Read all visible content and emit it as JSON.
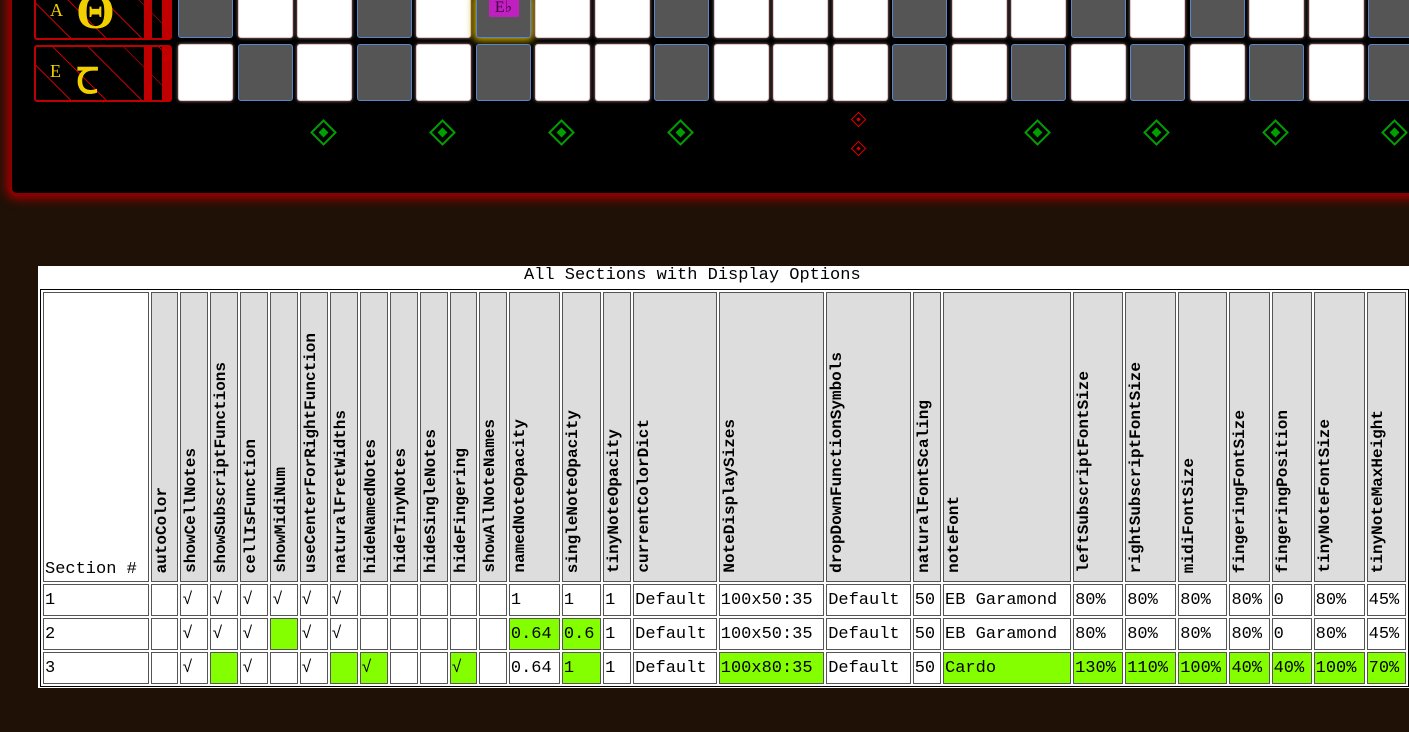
{
  "fretboard": {
    "strings": [
      {
        "note": "A",
        "function_symbol": "Θ",
        "cells": [
          "g",
          "w",
          "w",
          "g",
          "w",
          "g",
          "w",
          "w",
          "g",
          "w",
          "w",
          "w",
          "g",
          "w",
          "w",
          "g",
          "w",
          "g",
          "w",
          "w",
          "g"
        ],
        "highlight_index": 5,
        "highlight_label": "E♭"
      },
      {
        "note": "E",
        "function_symbol": "Ꞇ",
        "cells": [
          "w",
          "g",
          "w",
          "g",
          "w",
          "g",
          "w",
          "w",
          "g",
          "w",
          "w",
          "w",
          "g",
          "w",
          "g",
          "w",
          "g",
          "w",
          "g",
          "w",
          "g"
        ]
      }
    ],
    "fret_markers": [
      {
        "fret": 3,
        "type": "single",
        "color": "#00a000"
      },
      {
        "fret": 5,
        "type": "single",
        "color": "#00a000"
      },
      {
        "fret": 7,
        "type": "single",
        "color": "#00a000"
      },
      {
        "fret": 9,
        "type": "single",
        "color": "#00a000"
      },
      {
        "fret": 12,
        "type": "double",
        "color": "#e00000"
      },
      {
        "fret": 15,
        "type": "single",
        "color": "#00a000"
      },
      {
        "fret": 17,
        "type": "single",
        "color": "#00a000"
      },
      {
        "fret": 19,
        "type": "single",
        "color": "#00a000"
      },
      {
        "fret": 21,
        "type": "single",
        "color": "#00a000"
      }
    ]
  },
  "table": {
    "title": "All Sections with Display Options",
    "highlight_color": "#84ff00",
    "columns": [
      "Section #",
      "autoColor",
      "showCellNotes",
      "showSubscriptFunctions",
      "cellIsFunction",
      "showMidiNum",
      "useCenterForRightFunction",
      "naturalFretWidths",
      "hideNamedNotes",
      "hideTinyNotes",
      "hideSingleNotes",
      "hideFingering",
      "showAllNoteNames",
      "namedNoteOpacity",
      "singleNoteOpacity",
      "tinyNoteOpacity",
      "currentColorDict",
      "NoteDisplaySizes",
      "dropDownFunctionSymbols",
      "naturalFontScaling",
      "noteFont",
      "leftSubscriptFontSize",
      "rightSubscriptFontSize",
      "midiFontSize",
      "fingeringFontSize",
      "fingeringPosition",
      "tinyNoteFontSize",
      "tinyNoteMaxHeight"
    ],
    "rows": [
      {
        "values": [
          "1",
          "",
          "√",
          "√",
          "√",
          "√",
          "√",
          "√",
          "",
          "",
          "",
          "",
          "",
          "1",
          "1",
          "1",
          "Default",
          "100x50:35",
          "Default",
          "50",
          "EB Garamond",
          "80%",
          "80%",
          "80%",
          "80%",
          "0",
          "80%",
          "45%"
        ],
        "changed": []
      },
      {
        "values": [
          "2",
          "",
          "√",
          "√",
          "√",
          "",
          "√",
          "√",
          "",
          "",
          "",
          "",
          "",
          "0.64",
          "0.6",
          "1",
          "Default",
          "100x50:35",
          "Default",
          "50",
          "EB Garamond",
          "80%",
          "80%",
          "80%",
          "80%",
          "0",
          "80%",
          "45%"
        ],
        "changed": [
          5,
          13,
          14
        ]
      },
      {
        "values": [
          "3",
          "",
          "√",
          "",
          "√",
          "",
          "√",
          "",
          "√",
          "",
          "",
          "√",
          "",
          "0.64",
          "1",
          "1",
          "Default",
          "100x80:35",
          "Default",
          "50",
          "Cardo",
          "130%",
          "110%",
          "100%",
          "40%",
          "40%",
          "100%",
          "70%"
        ],
        "changed": [
          3,
          7,
          8,
          11,
          14,
          17,
          20,
          21,
          22,
          23,
          24,
          25,
          26,
          27
        ]
      }
    ]
  }
}
